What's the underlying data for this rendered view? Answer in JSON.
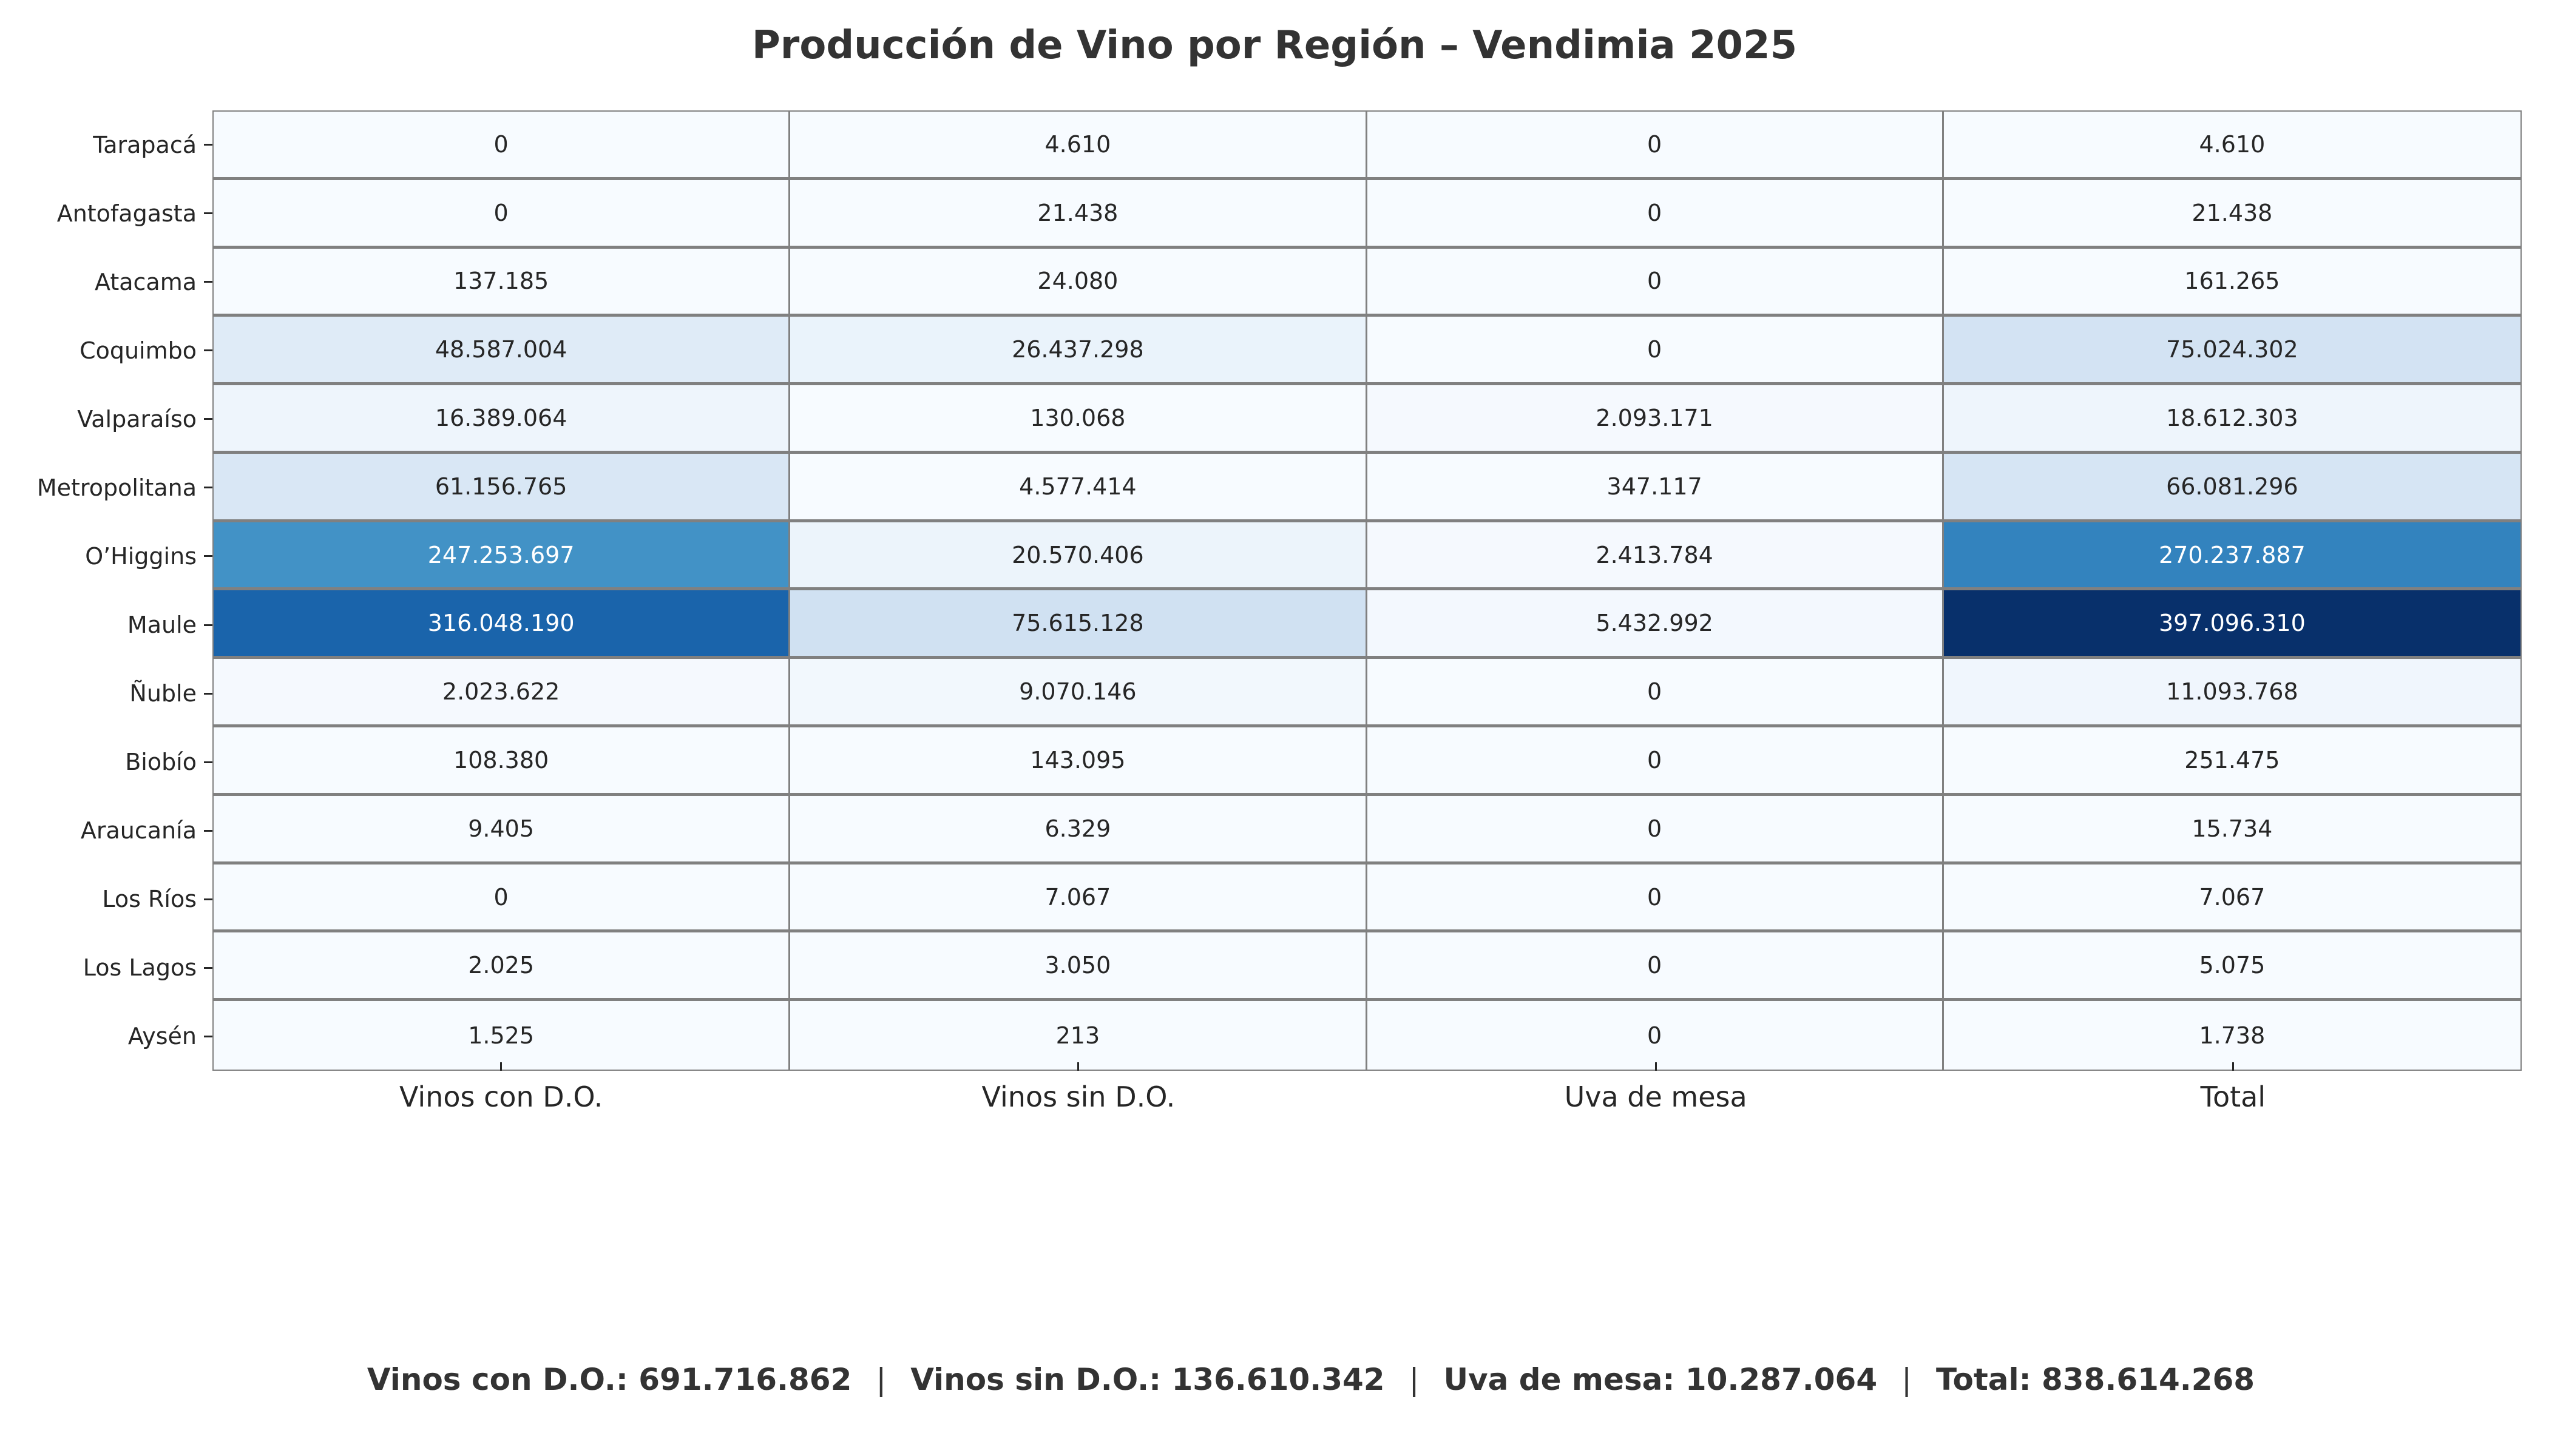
{
  "chart_data": {
    "type": "heatmap",
    "title": "Producción de Vino por Región – Vendimia 2025",
    "xlabel": "",
    "ylabel": "",
    "colormap": "Blues (normalized per column)",
    "columns": [
      "Vinos con D.O.",
      "Vinos sin D.O.",
      "Uva de mesa",
      "Total"
    ],
    "rows": [
      "Tarapacá",
      "Antofagasta",
      "Atacama",
      "Coquimbo",
      "Valparaíso",
      "Metropolitana",
      "O’Higgins",
      "Maule",
      "Ñuble",
      "Biobío",
      "Araucanía",
      "Los Ríos",
      "Los Lagos",
      "Aysén"
    ],
    "values": [
      [
        0,
        4610,
        0,
        4610
      ],
      [
        0,
        21438,
        0,
        21438
      ],
      [
        137185,
        24080,
        0,
        161265
      ],
      [
        48587004,
        26437298,
        0,
        75024302
      ],
      [
        16389064,
        130068,
        2093171,
        18612303
      ],
      [
        61156765,
        4577414,
        347117,
        66081296
      ],
      [
        247253697,
        20570406,
        2413784,
        270237887
      ],
      [
        316048190,
        75615128,
        5432992,
        397096310
      ],
      [
        2023622,
        9070146,
        0,
        11093768
      ],
      [
        108380,
        143095,
        0,
        251475
      ],
      [
        9405,
        6329,
        0,
        15734
      ],
      [
        0,
        7067,
        0,
        7067
      ],
      [
        2025,
        3050,
        0,
        5075
      ],
      [
        1525,
        213,
        0,
        1738
      ]
    ],
    "display_values": [
      [
        "0",
        "4.610",
        "0",
        "4.610"
      ],
      [
        "0",
        "21.438",
        "0",
        "21.438"
      ],
      [
        "137.185",
        "24.080",
        "0",
        "161.265"
      ],
      [
        "48.587.004",
        "26.437.298",
        "0",
        "75.024.302"
      ],
      [
        "16.389.064",
        "130.068",
        "2.093.171",
        "18.612.303"
      ],
      [
        "61.156.765",
        "4.577.414",
        "347.117",
        "66.081.296"
      ],
      [
        "247.253.697",
        "20.570.406",
        "2.413.784",
        "270.237.887"
      ],
      [
        "316.048.190",
        "75.615.128",
        "5.432.992",
        "397.096.310"
      ],
      [
        "2.023.622",
        "9.070.146",
        "0",
        "11.093.768"
      ],
      [
        "108.380",
        "143.095",
        "0",
        "251.475"
      ],
      [
        "9.405",
        "6.329",
        "0",
        "15.734"
      ],
      [
        "0",
        "7.067",
        "0",
        "7.067"
      ],
      [
        "2.025",
        "3.050",
        "0",
        "5.075"
      ],
      [
        "1.525",
        "213",
        "0",
        "1.738"
      ]
    ],
    "cell_colors": [
      [
        "#f7fbff",
        "#f7fbff",
        "#f7fbff",
        "#f7fbff"
      ],
      [
        "#f7fbff",
        "#f7fbff",
        "#f7fbff",
        "#f7fbff"
      ],
      [
        "#f7fbff",
        "#f7fbff",
        "#f7fbff",
        "#f7fbff"
      ],
      [
        "#dfebf7",
        "#eaf3fb",
        "#f7fbff",
        "#d3e3f3"
      ],
      [
        "#eef5fc",
        "#f7fbff",
        "#f5f9fe",
        "#eef5fc"
      ],
      [
        "#d9e7f5",
        "#f7fbff",
        "#f7fbff",
        "#d6e5f4"
      ],
      [
        "#4292c6",
        "#ecf4fb",
        "#f5f9fe",
        "#3383be"
      ],
      [
        "#1a64ab",
        "#d0e1f2",
        "#f3f8fe",
        "#08306b"
      ],
      [
        "#f5f9fe",
        "#f2f8fd",
        "#f7fbff",
        "#f0f6fd"
      ],
      [
        "#f7fbff",
        "#f7fbff",
        "#f7fbff",
        "#f7fbff"
      ],
      [
        "#f7fbff",
        "#f7fbff",
        "#f7fbff",
        "#f7fbff"
      ],
      [
        "#f7fbff",
        "#f7fbff",
        "#f7fbff",
        "#f7fbff"
      ],
      [
        "#f7fbff",
        "#f7fbff",
        "#f7fbff",
        "#f7fbff"
      ],
      [
        "#f7fbff",
        "#f7fbff",
        "#f7fbff",
        "#f7fbff"
      ]
    ],
    "dark_text_cells": [
      [
        6,
        0
      ],
      [
        6,
        3
      ],
      [
        7,
        0
      ],
      [
        7,
        3
      ]
    ],
    "grid": true,
    "legend": "none"
  },
  "footer": {
    "items": [
      "Vinos con D.O.: 691.716.862",
      "Vinos sin D.O.: 136.610.342",
      "Uva de mesa: 10.287.064",
      "Total: 838.614.268"
    ],
    "separator": "|"
  }
}
